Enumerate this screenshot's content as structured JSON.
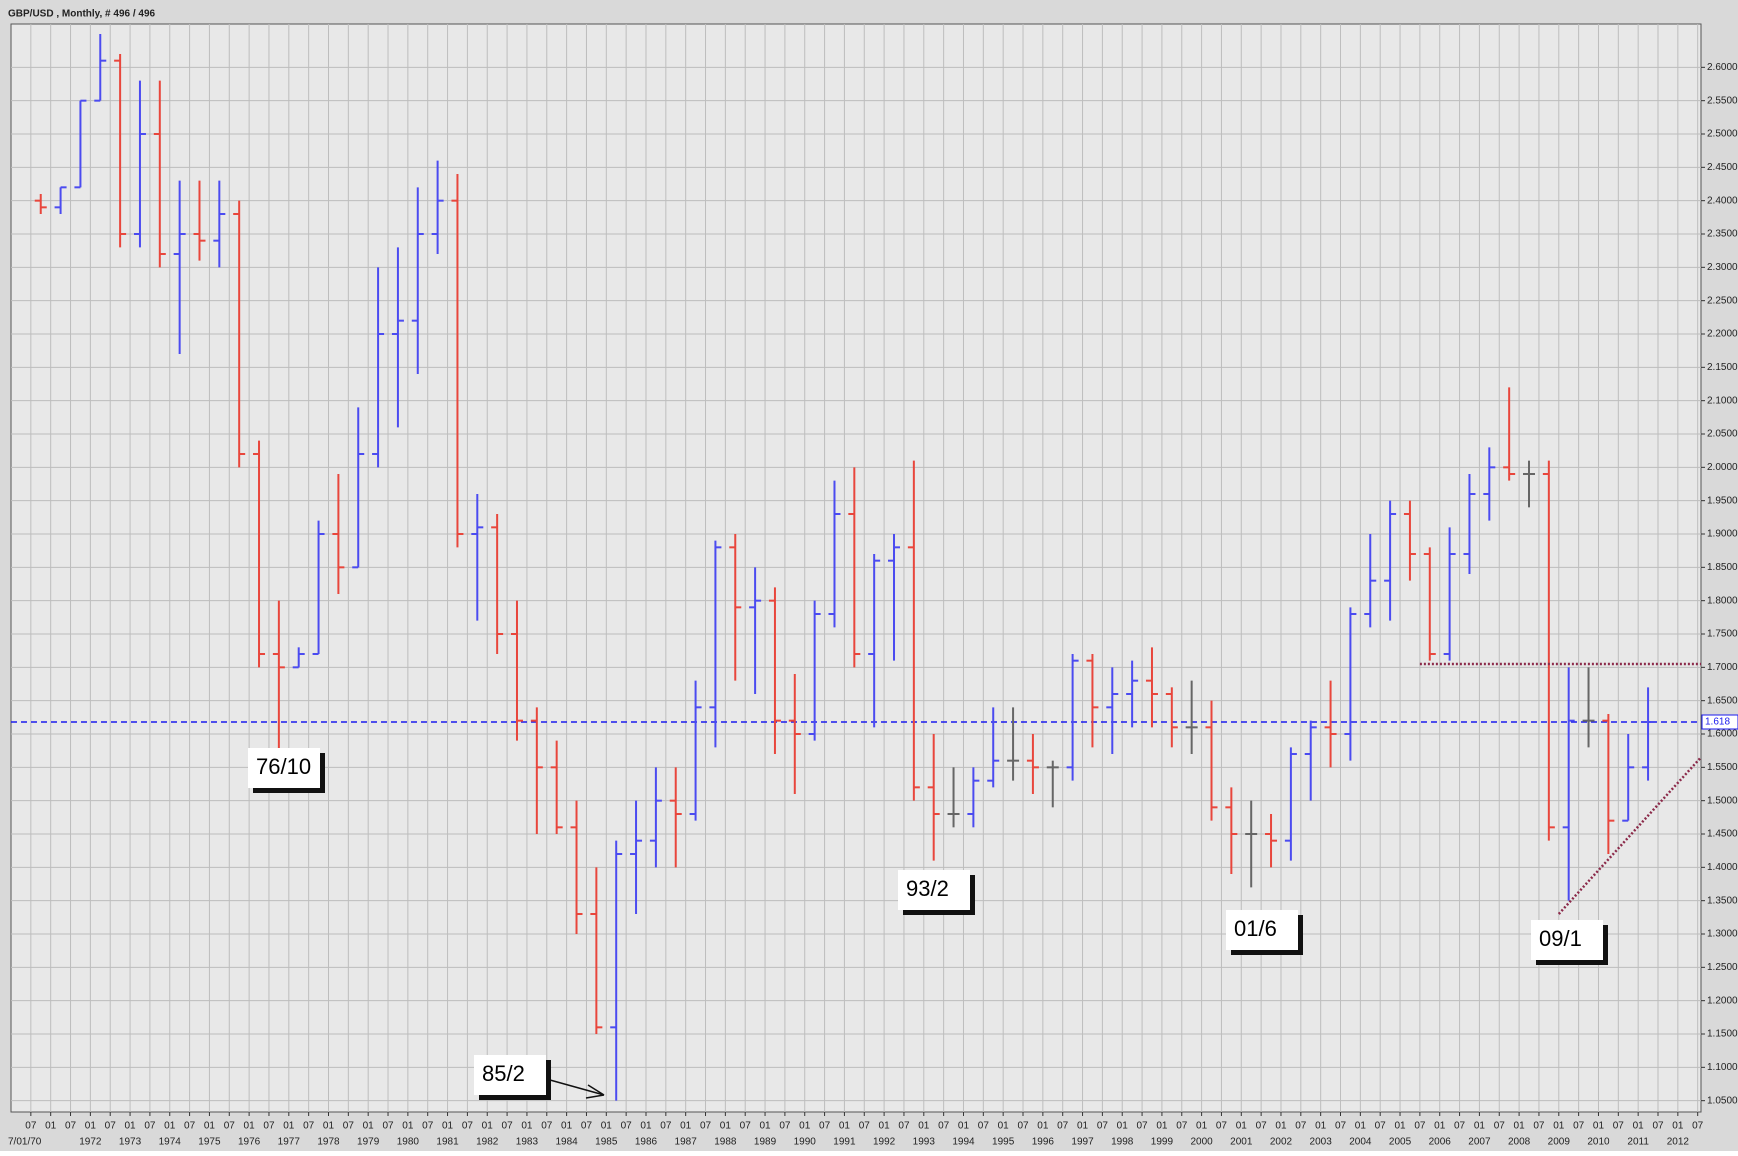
{
  "chart_data": {
    "type": "ohlc",
    "title": "GBP/USD , Monthly, # 496 / 496",
    "up_color": "#4b4bf0",
    "down_color": "#e8463c",
    "grid": true,
    "xlim": [
      "1970-01",
      "2012-08"
    ],
    "ylim": [
      1.033,
      2.665
    ],
    "yticks": [
      {
        "value": 1.05,
        "label": "1.0500"
      },
      {
        "value": 1.1,
        "label": "1.1000"
      },
      {
        "value": 1.15,
        "label": "1.1500"
      },
      {
        "value": 1.2,
        "label": "1.2000"
      },
      {
        "value": 1.25,
        "label": "1.2500"
      },
      {
        "value": 1.3,
        "label": "1.3000"
      },
      {
        "value": 1.35,
        "label": "1.3500"
      },
      {
        "value": 1.4,
        "label": "1.4000"
      },
      {
        "value": 1.45,
        "label": "1.4500"
      },
      {
        "value": 1.5,
        "label": "1.5000"
      },
      {
        "value": 1.55,
        "label": "1.5500"
      },
      {
        "value": 1.6,
        "label": "1.6000"
      },
      {
        "value": 1.65,
        "label": "1.6500"
      },
      {
        "value": 1.7,
        "label": "1.7000"
      },
      {
        "value": 1.75,
        "label": "1.7500"
      },
      {
        "value": 1.8,
        "label": "1.8000"
      },
      {
        "value": 1.85,
        "label": "1.8500"
      },
      {
        "value": 1.9,
        "label": "1.9000"
      },
      {
        "value": 1.95,
        "label": "1.9500"
      },
      {
        "value": 2.0,
        "label": "2.0000"
      },
      {
        "value": 2.05,
        "label": "2.0500"
      },
      {
        "value": 2.1,
        "label": "2.1000"
      },
      {
        "value": 2.15,
        "label": "2.1500"
      },
      {
        "value": 2.2,
        "label": "2.2000"
      },
      {
        "value": 2.25,
        "label": "2.2500"
      },
      {
        "value": 2.3,
        "label": "2.3000"
      },
      {
        "value": 2.35,
        "label": "2.3500"
      },
      {
        "value": 2.4,
        "label": "2.4000"
      },
      {
        "value": 2.45,
        "label": "2.4500"
      },
      {
        "value": 2.5,
        "label": "2.5000"
      },
      {
        "value": 2.55,
        "label": "2.5500"
      },
      {
        "value": 2.6,
        "label": "2.6000"
      }
    ],
    "xticks": [
      {
        "value": "1970-07",
        "label": "07"
      },
      {
        "value": "1971-01",
        "label": "01"
      },
      {
        "value": "1971-07",
        "label": "07"
      },
      {
        "value": "1972-01",
        "label": "01"
      },
      {
        "value": "1972-07",
        "label": "07"
      },
      {
        "value": "1973-01",
        "label": "01"
      },
      {
        "value": "1973-07",
        "label": "07"
      },
      {
        "value": "1974-01",
        "label": "01"
      },
      {
        "value": "1974-07",
        "label": "07"
      },
      {
        "value": "1975-01",
        "label": "01"
      },
      {
        "value": "1975-07",
        "label": "07"
      },
      {
        "value": "1976-01",
        "label": "01"
      },
      {
        "value": "1976-07",
        "label": "07"
      },
      {
        "value": "1977-01",
        "label": "01"
      },
      {
        "value": "1977-07",
        "label": "07"
      },
      {
        "value": "1978-01",
        "label": "01"
      },
      {
        "value": "1978-07",
        "label": "07"
      },
      {
        "value": "1979-01",
        "label": "01"
      },
      {
        "value": "1979-07",
        "label": "07"
      },
      {
        "value": "1980-01",
        "label": "01"
      },
      {
        "value": "1980-07",
        "label": "07"
      },
      {
        "value": "1981-01",
        "label": "01"
      },
      {
        "value": "1981-07",
        "label": "07"
      },
      {
        "value": "1982-01",
        "label": "01"
      },
      {
        "value": "1982-07",
        "label": "07"
      },
      {
        "value": "1983-01",
        "label": "01"
      },
      {
        "value": "1983-07",
        "label": "07"
      },
      {
        "value": "1984-01",
        "label": "01"
      },
      {
        "value": "1984-07",
        "label": "07"
      },
      {
        "value": "1985-01",
        "label": "01"
      },
      {
        "value": "1985-07",
        "label": "07"
      },
      {
        "value": "1986-01",
        "label": "01"
      },
      {
        "value": "1986-07",
        "label": "07"
      },
      {
        "value": "1987-01",
        "label": "01"
      },
      {
        "value": "1987-07",
        "label": "07"
      },
      {
        "value": "1988-01",
        "label": "01"
      },
      {
        "value": "1988-07",
        "label": "07"
      },
      {
        "value": "1989-01",
        "label": "01"
      },
      {
        "value": "1989-07",
        "label": "07"
      },
      {
        "value": "1990-01",
        "label": "01"
      },
      {
        "value": "1990-07",
        "label": "07"
      },
      {
        "value": "1991-01",
        "label": "01"
      },
      {
        "value": "1991-07",
        "label": "07"
      },
      {
        "value": "1992-01",
        "label": "01"
      },
      {
        "value": "1992-07",
        "label": "07"
      },
      {
        "value": "1993-01",
        "label": "01"
      },
      {
        "value": "1993-07",
        "label": "07"
      },
      {
        "value": "1994-01",
        "label": "01"
      },
      {
        "value": "1994-07",
        "label": "07"
      },
      {
        "value": "1995-01",
        "label": "01"
      },
      {
        "value": "1995-07",
        "label": "07"
      },
      {
        "value": "1996-01",
        "label": "01"
      },
      {
        "value": "1996-07",
        "label": "07"
      },
      {
        "value": "1997-01",
        "label": "01"
      },
      {
        "value": "1997-07",
        "label": "07"
      },
      {
        "value": "1998-01",
        "label": "01"
      },
      {
        "value": "1998-07",
        "label": "07"
      },
      {
        "value": "1999-01",
        "label": "01"
      },
      {
        "value": "1999-07",
        "label": "07"
      },
      {
        "value": "2000-01",
        "label": "01"
      },
      {
        "value": "2000-07",
        "label": "07"
      },
      {
        "value": "2001-01",
        "label": "01"
      },
      {
        "value": "2001-07",
        "label": "07"
      },
      {
        "value": "2002-01",
        "label": "01"
      },
      {
        "value": "2002-07",
        "label": "07"
      },
      {
        "value": "2003-01",
        "label": "01"
      },
      {
        "value": "2003-07",
        "label": "07"
      },
      {
        "value": "2004-01",
        "label": "01"
      },
      {
        "value": "2004-07",
        "label": "07"
      },
      {
        "value": "2005-01",
        "label": "01"
      },
      {
        "value": "2005-07",
        "label": "07"
      },
      {
        "value": "2006-01",
        "label": "01"
      },
      {
        "value": "2006-07",
        "label": "07"
      },
      {
        "value": "2007-01",
        "label": "01"
      },
      {
        "value": "2007-07",
        "label": "07"
      },
      {
        "value": "2008-01",
        "label": "01"
      },
      {
        "value": "2008-07",
        "label": "07"
      },
      {
        "value": "2009-01",
        "label": "01"
      },
      {
        "value": "2009-07",
        "label": "07"
      },
      {
        "value": "2010-01",
        "label": "01"
      },
      {
        "value": "2010-07",
        "label": "07"
      },
      {
        "value": "2011-01",
        "label": "01"
      },
      {
        "value": "2011-07",
        "label": "07"
      },
      {
        "value": "2012-01",
        "label": "01"
      },
      {
        "value": "2012-07",
        "label": "07"
      }
    ],
    "year_labels": [
      {
        "value": "1970-07",
        "label": "7/01/70"
      },
      {
        "value": "1972-01",
        "label": "1972"
      },
      {
        "value": "1973-01",
        "label": "1973"
      },
      {
        "value": "1974-01",
        "label": "1974"
      },
      {
        "value": "1975-01",
        "label": "1975"
      },
      {
        "value": "1976-01",
        "label": "1976"
      },
      {
        "value": "1977-01",
        "label": "1977"
      },
      {
        "value": "1978-01",
        "label": "1978"
      },
      {
        "value": "1979-01",
        "label": "1979"
      },
      {
        "value": "1980-01",
        "label": "1980"
      },
      {
        "value": "1981-01",
        "label": "1981"
      },
      {
        "value": "1982-01",
        "label": "1982"
      },
      {
        "value": "1983-01",
        "label": "1983"
      },
      {
        "value": "1984-01",
        "label": "1984"
      },
      {
        "value": "1985-01",
        "label": "1985"
      },
      {
        "value": "1986-01",
        "label": "1986"
      },
      {
        "value": "1987-01",
        "label": "1987"
      },
      {
        "value": "1988-01",
        "label": "1988"
      },
      {
        "value": "1989-01",
        "label": "1989"
      },
      {
        "value": "1990-01",
        "label": "1990"
      },
      {
        "value": "1991-01",
        "label": "1991"
      },
      {
        "value": "1992-01",
        "label": "1992"
      },
      {
        "value": "1993-01",
        "label": "1993"
      },
      {
        "value": "1994-01",
        "label": "1994"
      },
      {
        "value": "1995-01",
        "label": "1995"
      },
      {
        "value": "1996-01",
        "label": "1996"
      },
      {
        "value": "1997-01",
        "label": "1997"
      },
      {
        "value": "1998-01",
        "label": "1998"
      },
      {
        "value": "1999-01",
        "label": "1999"
      },
      {
        "value": "2000-01",
        "label": "2000"
      },
      {
        "value": "2001-01",
        "label": "2001"
      },
      {
        "value": "2002-01",
        "label": "2002"
      },
      {
        "value": "2003-01",
        "label": "2003"
      },
      {
        "value": "2004-01",
        "label": "2004"
      },
      {
        "value": "2005-01",
        "label": "2005"
      },
      {
        "value": "2006-01",
        "label": "2006"
      },
      {
        "value": "2007-01",
        "label": "2007"
      },
      {
        "value": "2008-01",
        "label": "2008"
      },
      {
        "value": "2009-01",
        "label": "2009"
      },
      {
        "value": "2010-01",
        "label": "2010"
      },
      {
        "value": "2011-01",
        "label": "2011"
      },
      {
        "value": "2012-01",
        "label": "2012"
      }
    ],
    "x": [
      "1970-07",
      "1971-01",
      "1971-07",
      "1972-01",
      "1972-07",
      "1973-01",
      "1973-07",
      "1974-01",
      "1974-07",
      "1975-01",
      "1975-07",
      "1976-01",
      "1976-07",
      "1977-01",
      "1977-07",
      "1978-01",
      "1978-07",
      "1979-01",
      "1979-07",
      "1980-01",
      "1980-07",
      "1981-01",
      "1981-07",
      "1982-01",
      "1982-07",
      "1983-01",
      "1983-07",
      "1984-01",
      "1984-07",
      "1985-01",
      "1985-07",
      "1986-01",
      "1986-07",
      "1987-01",
      "1987-07",
      "1988-01",
      "1988-07",
      "1989-01",
      "1989-07",
      "1990-01",
      "1990-07",
      "1991-01",
      "1991-07",
      "1992-01",
      "1992-07",
      "1993-01",
      "1993-07",
      "1994-01",
      "1994-07",
      "1995-01",
      "1995-07",
      "1996-01",
      "1996-07",
      "1997-01",
      "1997-07",
      "1998-01",
      "1998-07",
      "1999-01",
      "1999-07",
      "2000-01",
      "2000-07",
      "2001-01",
      "2001-07",
      "2002-01",
      "2002-07",
      "2003-01",
      "2003-07",
      "2004-01",
      "2004-07",
      "2005-01",
      "2005-07",
      "2006-01",
      "2006-07",
      "2007-01",
      "2007-07",
      "2008-01",
      "2008-07",
      "2009-01",
      "2009-07",
      "2010-01",
      "2010-07",
      "2011-01"
    ],
    "open": [
      2.4,
      2.39,
      2.42,
      2.55,
      2.61,
      2.35,
      2.5,
      2.32,
      2.35,
      2.34,
      2.38,
      2.02,
      1.72,
      1.7,
      1.72,
      1.9,
      1.85,
      2.02,
      2.2,
      2.22,
      2.35,
      2.4,
      1.9,
      1.91,
      1.75,
      1.62,
      1.55,
      1.46,
      1.33,
      1.16,
      1.42,
      1.44,
      1.5,
      1.48,
      1.64,
      1.88,
      1.79,
      1.8,
      1.62,
      1.6,
      1.78,
      1.93,
      1.72,
      1.86,
      1.88,
      1.52,
      1.48,
      1.48,
      1.53,
      1.56,
      1.56,
      1.55,
      1.55,
      1.71,
      1.64,
      1.66,
      1.68,
      1.66,
      1.61,
      1.61,
      1.49,
      1.45,
      1.45,
      1.44,
      1.57,
      1.61,
      1.6,
      1.78,
      1.83,
      1.93,
      1.87,
      1.72,
      1.87,
      1.96,
      2.0,
      1.99,
      1.99,
      1.46,
      1.62,
      1.62,
      1.47,
      1.55
    ],
    "high": [
      2.41,
      2.42,
      2.55,
      2.65,
      2.62,
      2.58,
      2.58,
      2.43,
      2.43,
      2.43,
      2.4,
      2.04,
      1.8,
      1.73,
      1.92,
      1.99,
      2.09,
      2.3,
      2.33,
      2.42,
      2.46,
      2.44,
      1.96,
      1.93,
      1.8,
      1.64,
      1.59,
      1.5,
      1.4,
      1.44,
      1.5,
      1.55,
      1.55,
      1.68,
      1.89,
      1.9,
      1.85,
      1.82,
      1.69,
      1.8,
      1.98,
      2.0,
      1.87,
      1.9,
      2.01,
      1.6,
      1.55,
      1.55,
      1.64,
      1.64,
      1.6,
      1.56,
      1.72,
      1.72,
      1.7,
      1.71,
      1.73,
      1.67,
      1.68,
      1.65,
      1.52,
      1.5,
      1.48,
      1.58,
      1.62,
      1.68,
      1.79,
      1.9,
      1.95,
      1.95,
      1.88,
      1.91,
      1.99,
      2.03,
      2.12,
      2.01,
      2.01,
      1.7,
      1.7,
      1.63,
      1.6,
      1.67
    ],
    "low": [
      2.38,
      2.38,
      2.42,
      2.55,
      2.33,
      2.33,
      2.3,
      2.17,
      2.31,
      2.3,
      2.0,
      1.7,
      1.56,
      1.7,
      1.72,
      1.81,
      1.85,
      2.0,
      2.06,
      2.14,
      2.32,
      1.88,
      1.77,
      1.72,
      1.59,
      1.45,
      1.45,
      1.3,
      1.15,
      1.05,
      1.33,
      1.4,
      1.4,
      1.47,
      1.58,
      1.68,
      1.66,
      1.57,
      1.51,
      1.59,
      1.76,
      1.7,
      1.61,
      1.71,
      1.5,
      1.41,
      1.46,
      1.46,
      1.52,
      1.53,
      1.51,
      1.49,
      1.53,
      1.58,
      1.57,
      1.61,
      1.61,
      1.58,
      1.57,
      1.47,
      1.39,
      1.37,
      1.4,
      1.41,
      1.5,
      1.55,
      1.56,
      1.76,
      1.77,
      1.83,
      1.71,
      1.71,
      1.84,
      1.92,
      1.98,
      1.94,
      1.44,
      1.35,
      1.58,
      1.42,
      1.47,
      1.53
    ],
    "close": [
      2.39,
      2.42,
      2.55,
      2.61,
      2.35,
      2.5,
      2.32,
      2.35,
      2.34,
      2.38,
      2.02,
      1.72,
      1.7,
      1.72,
      1.9,
      1.85,
      2.02,
      2.2,
      2.22,
      2.35,
      2.4,
      1.9,
      1.91,
      1.75,
      1.62,
      1.55,
      1.46,
      1.33,
      1.16,
      1.42,
      1.44,
      1.5,
      1.48,
      1.64,
      1.88,
      1.79,
      1.8,
      1.62,
      1.6,
      1.78,
      1.93,
      1.72,
      1.86,
      1.88,
      1.52,
      1.48,
      1.48,
      1.53,
      1.56,
      1.56,
      1.55,
      1.55,
      1.71,
      1.64,
      1.66,
      1.68,
      1.66,
      1.61,
      1.61,
      1.49,
      1.45,
      1.45,
      1.44,
      1.57,
      1.61,
      1.6,
      1.78,
      1.83,
      1.93,
      1.87,
      1.72,
      1.87,
      1.96,
      2.0,
      1.99,
      1.99,
      1.46,
      1.62,
      1.62,
      1.47,
      1.55,
      1.618
    ],
    "last_price": 1.618,
    "resistance_line": {
      "x": [
        "2005-07",
        "2012-08"
      ],
      "values": [
        1.705,
        1.705
      ]
    },
    "trend_line": {
      "x": [
        "2009-01",
        "2012-08"
      ],
      "values": [
        1.33,
        1.565
      ]
    },
    "annotations": [
      "76/10",
      "85/2",
      "93/2",
      "01/6",
      "09/1"
    ]
  }
}
